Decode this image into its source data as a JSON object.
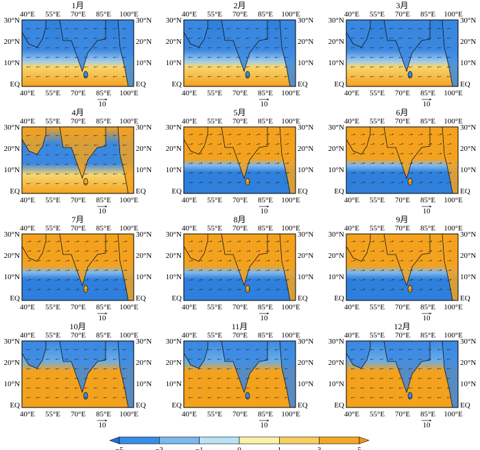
{
  "panels": [
    {
      "title": "1月"
    },
    {
      "title": "2月"
    },
    {
      "title": "3月"
    },
    {
      "title": "4月"
    },
    {
      "title": "5月"
    },
    {
      "title": "6月"
    },
    {
      "title": "7月"
    },
    {
      "title": "8月"
    },
    {
      "title": "9月"
    },
    {
      "title": "10月"
    },
    {
      "title": "11月"
    },
    {
      "title": "12月"
    }
  ],
  "x_ticks": [
    "40°E",
    "55°E",
    "70°E",
    "85°E",
    "100°E"
  ],
  "y_ticks_left": [
    "30°N",
    "20°N",
    "10°N",
    "EQ"
  ],
  "y_ticks_right": [
    "30°N",
    "20°N",
    "10°N",
    "EQ"
  ],
  "reference_vector_label": "10",
  "colorbar": {
    "labels": [
      "−5",
      "−3",
      "−1",
      "0",
      "1",
      "3",
      "5"
    ],
    "colors": [
      "#1e6fd9",
      "#3a8ee6",
      "#7db8ee",
      "#b9e3f5",
      "#fbf2a8",
      "#f7cf63",
      "#f4a824",
      "#f09418"
    ]
  },
  "colors": {
    "negative": "#2f7fdc",
    "negative_light": "#7fb9ee",
    "neutral": "#cfe9f4",
    "positive_light": "#f6d878",
    "positive": "#f3a21e",
    "coast": "#111111"
  }
}
